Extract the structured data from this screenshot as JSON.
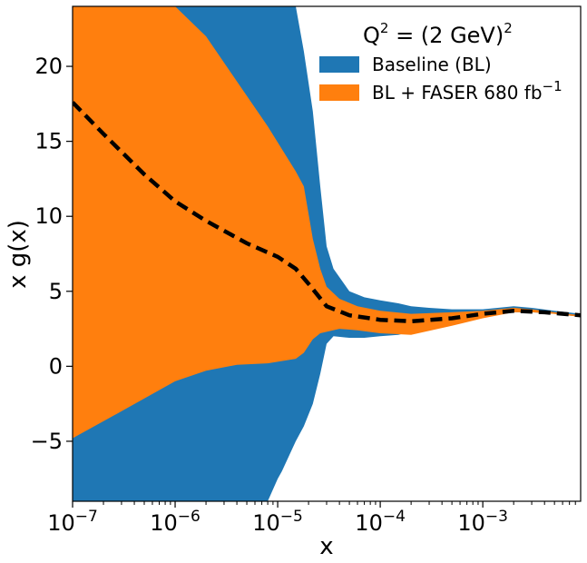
{
  "chart_data": {
    "type": "area",
    "xscale": "log",
    "xlabel": "x",
    "ylabel": "x g(x)",
    "xlim": [
      1e-07,
      0.009
    ],
    "ylim": [
      -9,
      24
    ],
    "legend": {
      "placement": "top-right",
      "title_base": "Q",
      "title_sup": "2",
      "title_rest": " = (2 GeV)",
      "title_sup2": "2",
      "entries": [
        {
          "label": "Baseline (BL)",
          "color": "#1f77b4"
        },
        {
          "label_base": "BL + FASER 680 fb",
          "label_sup": "−1",
          "color": "#ff7f0e"
        }
      ]
    },
    "x_ticks": [
      {
        "value": 1e-07,
        "base": "10",
        "exp": "−7"
      },
      {
        "value": 1e-06,
        "base": "10",
        "exp": "−6"
      },
      {
        "value": 1e-05,
        "base": "10",
        "exp": "−5"
      },
      {
        "value": 0.0001,
        "base": "10",
        "exp": "−4"
      },
      {
        "value": 0.001,
        "base": "10",
        "exp": "−3"
      }
    ],
    "y_ticks": [
      {
        "value": -5,
        "label": "−5"
      },
      {
        "value": 0,
        "label": "0"
      },
      {
        "value": 5,
        "label": "5"
      },
      {
        "value": 10,
        "label": "10"
      },
      {
        "value": 15,
        "label": "15"
      },
      {
        "value": 20,
        "label": "20"
      }
    ],
    "series": [
      {
        "name": "Baseline (BL)",
        "color": "#1f77b4",
        "band": [
          {
            "x": 1e-07,
            "lo": -9,
            "hi": 24
          },
          {
            "x": 1.8e-06,
            "lo": -9,
            "hi": 24
          },
          {
            "x": 2e-06,
            "lo": -9,
            "hi": 24
          },
          {
            "x": 4e-06,
            "lo": -9,
            "hi": 24
          },
          {
            "x": 8e-06,
            "lo": -9,
            "hi": 24
          },
          {
            "x": 1e-05,
            "lo": -7.5,
            "hi": 24
          },
          {
            "x": 1.1e-05,
            "lo": -7,
            "hi": 24
          },
          {
            "x": 1.5e-05,
            "lo": -5,
            "hi": 24
          },
          {
            "x": 1.8e-05,
            "lo": -4,
            "hi": 21
          },
          {
            "x": 2.2e-05,
            "lo": -2.5,
            "hi": 17
          },
          {
            "x": 2.6e-05,
            "lo": -0.5,
            "hi": 12
          },
          {
            "x": 3e-05,
            "lo": 1.5,
            "hi": 8
          },
          {
            "x": 3.5e-05,
            "lo": 2.0,
            "hi": 6.5
          },
          {
            "x": 5e-05,
            "lo": 1.9,
            "hi": 5.0
          },
          {
            "x": 7e-05,
            "lo": 1.9,
            "hi": 4.6
          },
          {
            "x": 0.0001,
            "lo": 2.0,
            "hi": 4.4
          },
          {
            "x": 0.00015,
            "lo": 2.1,
            "hi": 4.2
          },
          {
            "x": 0.0002,
            "lo": 2.3,
            "hi": 4.0
          },
          {
            "x": 0.0003,
            "lo": 2.6,
            "hi": 3.9
          },
          {
            "x": 0.0005,
            "lo": 3.0,
            "hi": 3.8
          },
          {
            "x": 0.001,
            "lo": 3.4,
            "hi": 3.8
          },
          {
            "x": 0.002,
            "lo": 3.6,
            "hi": 4.0
          },
          {
            "x": 0.003,
            "lo": 3.6,
            "hi": 3.9
          },
          {
            "x": 0.005,
            "lo": 3.5,
            "hi": 3.7
          },
          {
            "x": 0.009,
            "lo": 3.3,
            "hi": 3.5
          }
        ]
      },
      {
        "name": "BL + FASER 680 fb−1",
        "color": "#ff7f0e",
        "band": [
          {
            "x": 1e-07,
            "lo": -4.8,
            "hi": 24
          },
          {
            "x": 3e-07,
            "lo": -3.0,
            "hi": 24
          },
          {
            "x": 1e-06,
            "lo": -1.0,
            "hi": 24
          },
          {
            "x": 2e-06,
            "lo": -0.3,
            "hi": 22
          },
          {
            "x": 4e-06,
            "lo": 0.1,
            "hi": 19
          },
          {
            "x": 8e-06,
            "lo": 0.2,
            "hi": 16
          },
          {
            "x": 1.5e-05,
            "lo": 0.5,
            "hi": 13
          },
          {
            "x": 1.8e-05,
            "lo": 0.9,
            "hi": 12
          },
          {
            "x": 2.2e-05,
            "lo": 1.8,
            "hi": 8.5
          },
          {
            "x": 2.6e-05,
            "lo": 2.2,
            "hi": 6.5
          },
          {
            "x": 3e-05,
            "lo": 2.3,
            "hi": 5.3
          },
          {
            "x": 4e-05,
            "lo": 2.5,
            "hi": 4.5
          },
          {
            "x": 6e-05,
            "lo": 2.4,
            "hi": 4.0
          },
          {
            "x": 0.0001,
            "lo": 2.2,
            "hi": 3.7
          },
          {
            "x": 0.0002,
            "lo": 2.1,
            "hi": 3.5
          },
          {
            "x": 0.0005,
            "lo": 2.7,
            "hi": 3.6
          },
          {
            "x": 0.001,
            "lo": 3.2,
            "hi": 3.7
          },
          {
            "x": 0.002,
            "lo": 3.6,
            "hi": 3.9
          },
          {
            "x": 0.003,
            "lo": 3.6,
            "hi": 3.8
          },
          {
            "x": 0.005,
            "lo": 3.5,
            "hi": 3.6
          },
          {
            "x": 0.009,
            "lo": 3.3,
            "hi": 3.4
          }
        ]
      },
      {
        "type": "line",
        "style": "dashed",
        "color": "#000000",
        "points": [
          {
            "x": 1e-07,
            "y": 17.6
          },
          {
            "x": 2e-07,
            "y": 15.5
          },
          {
            "x": 5e-07,
            "y": 12.8
          },
          {
            "x": 1e-06,
            "y": 11.0
          },
          {
            "x": 2e-06,
            "y": 9.7
          },
          {
            "x": 5e-06,
            "y": 8.2
          },
          {
            "x": 1e-05,
            "y": 7.3
          },
          {
            "x": 1.5e-05,
            "y": 6.5
          },
          {
            "x": 2e-05,
            "y": 5.5
          },
          {
            "x": 3e-05,
            "y": 4.0
          },
          {
            "x": 5e-05,
            "y": 3.4
          },
          {
            "x": 0.0001,
            "y": 3.1
          },
          {
            "x": 0.0002,
            "y": 3.0
          },
          {
            "x": 0.0005,
            "y": 3.2
          },
          {
            "x": 0.001,
            "y": 3.5
          },
          {
            "x": 0.002,
            "y": 3.7
          },
          {
            "x": 0.004,
            "y": 3.6
          },
          {
            "x": 0.009,
            "y": 3.4
          }
        ]
      }
    ]
  }
}
